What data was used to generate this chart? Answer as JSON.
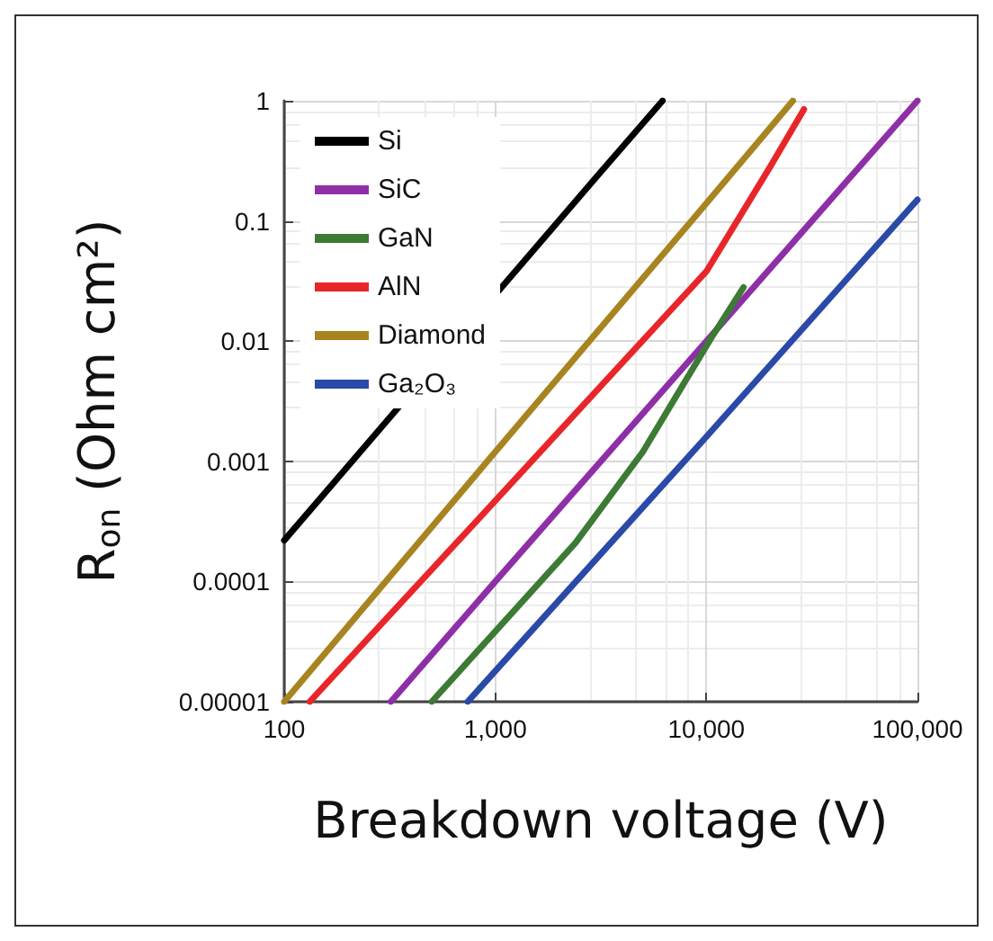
{
  "chart_data": {
    "type": "line",
    "xlabel": "Breakdown voltage (V)",
    "ylabel": "R$_{on}$ (Ohm cm²)",
    "log": "xy",
    "grid": true,
    "legend": "top left",
    "marker": "none",
    "line_style": "solid",
    "xlim": [
      100,
      100000
    ],
    "xticks": [
      100,
      {
        "value": 1000,
        "label": "1,000"
      },
      {
        "value": 10000,
        "label": "10,000"
      },
      {
        "value": 100000,
        "label": "100,000"
      }
    ],
    "ylim": [
      1e-05,
      1
    ],
    "yticks": [
      {
        "value": 1e-05,
        "label": "0.00001"
      },
      0.0001,
      0.001,
      0.01,
      0.1,
      1
    ],
    "series": [
      {
        "name": "Si",
        "color": "#000000",
        "x": [
          100,
          3000,
          6200
        ],
        "values": [
          0.00022,
          0.23,
          1
        ]
      },
      {
        "name": "SiC",
        "color": "#8e2fa8",
        "x": [
          320,
          1000,
          10000,
          100000
        ],
        "values": [
          1e-05,
          0.0001,
          0.01,
          1
        ]
      },
      {
        "name": "GaN",
        "color": "#3d7a35",
        "x": [
          500,
          2400,
          5000,
          10500,
          15000
        ],
        "values": [
          1e-05,
          0.00021,
          0.0012,
          0.0105,
          0.028
        ]
      },
      {
        "name": "AlN",
        "color": "#e8262a",
        "x": [
          132,
          1000,
          10000,
          20000,
          29000
        ],
        "values": [
          1e-05,
          0.00047,
          0.038,
          0.28,
          0.85
        ]
      },
      {
        "name": "Diamond",
        "color": "#a88420",
        "x": [
          100,
          1000,
          10000,
          25700
        ],
        "values": [
          1e-05,
          0.0012,
          0.14,
          1
        ]
      },
      {
        "name": "Ga₂O₃",
        "color": "#2a49a8",
        "x": [
          740,
          1000,
          10000,
          100000
        ],
        "values": [
          1e-05,
          1.8e-05,
          0.0016,
          0.15
        ]
      }
    ]
  }
}
